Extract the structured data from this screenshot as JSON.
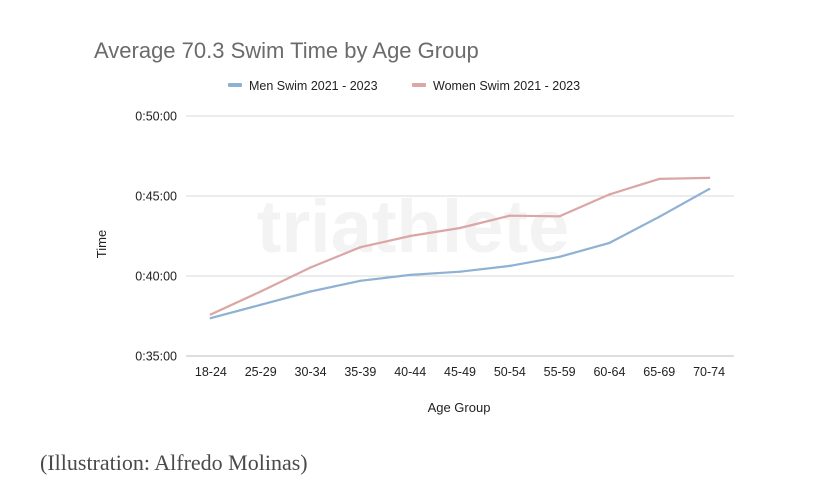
{
  "chart_data": {
    "type": "line",
    "title": "Average 70.3 Swim Time by Age Group",
    "xlabel": "Age Group",
    "ylabel": "Time",
    "categories": [
      "18-24",
      "25-29",
      "30-34",
      "35-39",
      "40-44",
      "45-49",
      "50-54",
      "55-59",
      "60-64",
      "65-69",
      "70-74"
    ],
    "y_ticks": [
      "0:35:00",
      "0:40:00",
      "0:45:00",
      "0:50:00"
    ],
    "ylim": [
      "0:35:00",
      "0:50:00"
    ],
    "grid": true,
    "legend_position": "top",
    "series": [
      {
        "name": "Men Swim 2021 - 2023",
        "color": "#8fb1d3",
        "values": [
          "0:37:22",
          "0:38:12",
          "0:39:02",
          "0:39:42",
          "0:40:04",
          "0:40:16",
          "0:40:38",
          "0:41:12",
          "0:42:04",
          "0:43:42",
          "0:45:26"
        ]
      },
      {
        "name": "Women Swim 2021 - 2023",
        "color": "#dba6a6",
        "values": [
          "0:37:36",
          "0:39:02",
          "0:40:32",
          "0:41:48",
          "0:42:30",
          "0:43:00",
          "0:43:46",
          "0:43:44",
          "0:45:06",
          "0:46:04",
          "0:46:08"
        ]
      }
    ],
    "watermark": "triathlete"
  },
  "caption": "(Illustration: Alfredo Molinas)"
}
